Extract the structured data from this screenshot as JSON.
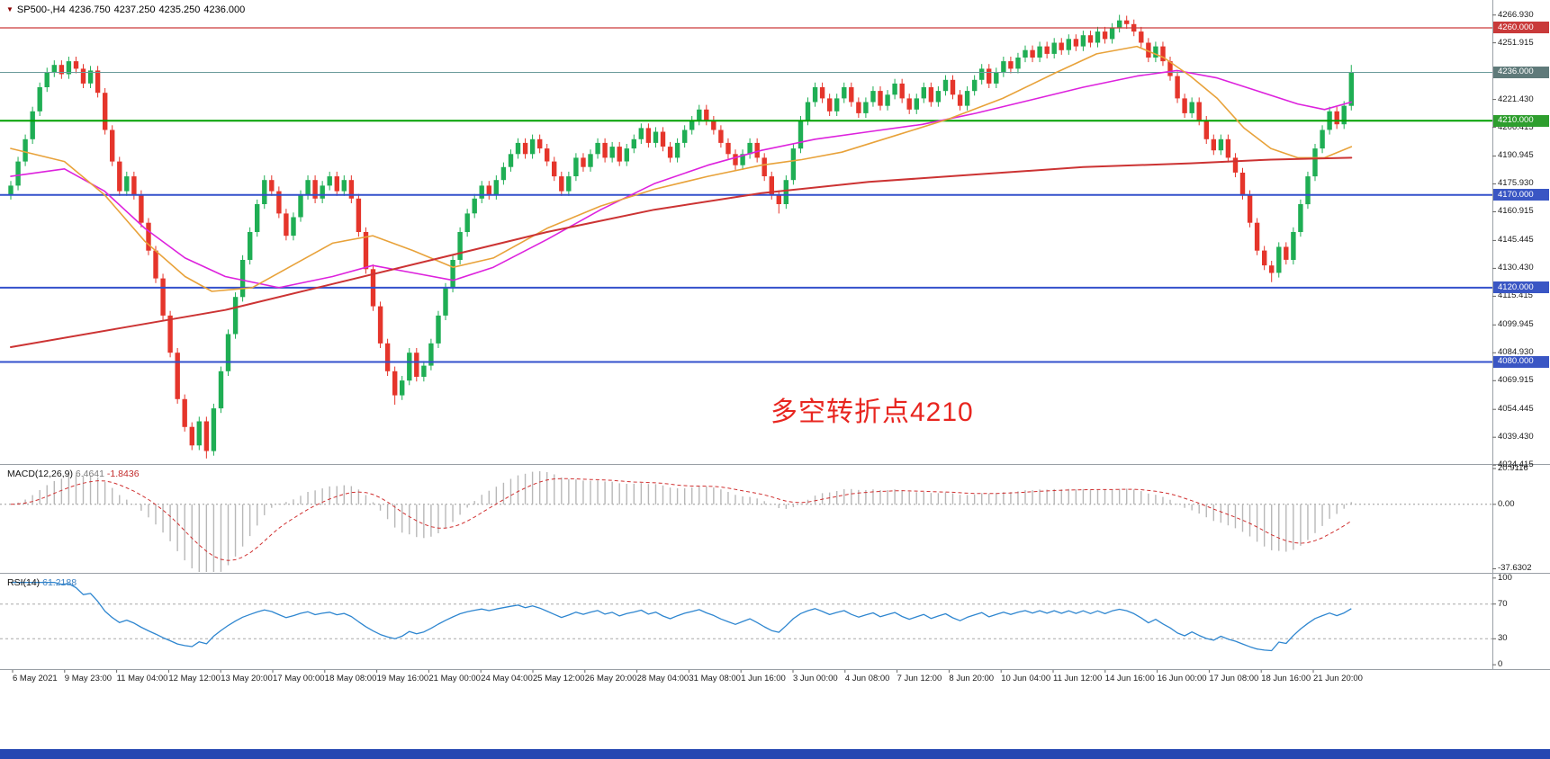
{
  "window": {
    "symbol_line": {
      "marker": "▼",
      "symbol": "SP500-,H4",
      "open": "4236.750",
      "high": "4237.250",
      "low": "4235.250",
      "close": "4236.000"
    }
  },
  "annotation": {
    "text": "多空转折点4210",
    "color": "#e8251f"
  },
  "colors": {
    "background": "#ffffff",
    "separator": "#9aa0a6",
    "axis_text": "#1a1a1a",
    "bottom_bar": "#2547b2",
    "candle_up": "#1fae54",
    "candle_down": "#e5352b"
  },
  "chart_data": {
    "type": "candlestick",
    "symbol": "SP500-",
    "timeframe": "H4",
    "title": "SP500-,H4 4236.750 4237.250 4235.250 4236.000",
    "grid": false,
    "price_axis": {
      "min": 4025,
      "max": 4275,
      "ticks": [
        "4266.930",
        "4251.915",
        "4221.430",
        "4206.415",
        "4190.945",
        "4175.930",
        "4160.915",
        "4145.445",
        "4130.430",
        "4115.415",
        "4099.945",
        "4084.930",
        "4069.915",
        "4054.445",
        "4039.430",
        "4024.415"
      ]
    },
    "levels": [
      {
        "value": 4260,
        "label": "4260.000",
        "color": "#cc3a3a",
        "badge": "#c93a3a",
        "width": 1.2,
        "current": false
      },
      {
        "value": 4236,
        "label": "4236.000",
        "color": "#6b9b9b",
        "badge": "#5f7a7a",
        "width": 1,
        "current": true
      },
      {
        "value": 4210,
        "label": "4210.000",
        "color": "#00a000",
        "badge": "#2e9e2e",
        "width": 2,
        "current": false
      },
      {
        "value": 4170,
        "label": "4170.000",
        "color": "#3350cc",
        "badge": "#3a56c4",
        "width": 2,
        "current": false
      },
      {
        "value": 4120,
        "label": "4120.000",
        "color": "#3350cc",
        "badge": "#3a56c4",
        "width": 2,
        "current": false
      },
      {
        "value": 4080,
        "label": "4080.000",
        "color": "#3350cc",
        "badge": "#3a56c4",
        "width": 2,
        "current": false
      }
    ],
    "up_color": "#1fae54",
    "down_color": "#e5352b",
    "first_open": 4170,
    "wick": 2.5,
    "wick_overrides": {
      "27": {
        "low": 4028
      },
      "53": {
        "low": 4057
      },
      "106": {
        "low": 4160
      },
      "153": {
        "high": 4267
      },
      "174": {
        "low": 4123
      },
      "185": {
        "high": 4240
      }
    },
    "closes": [
      4175,
      4188,
      4200,
      4215,
      4228,
      4236,
      4240,
      4235,
      4242,
      4238,
      4230,
      4237,
      4225,
      4205,
      4188,
      4172,
      4180,
      4170,
      4155,
      4140,
      4125,
      4105,
      4085,
      4060,
      4045,
      4035,
      4048,
      4032,
      4055,
      4075,
      4095,
      4115,
      4135,
      4150,
      4165,
      4178,
      4172,
      4160,
      4148,
      4158,
      4170,
      4178,
      4168,
      4175,
      4180,
      4172,
      4178,
      4168,
      4150,
      4130,
      4110,
      4090,
      4075,
      4062,
      4070,
      4085,
      4072,
      4078,
      4090,
      4105,
      4120,
      4135,
      4150,
      4160,
      4168,
      4175,
      4170,
      4178,
      4185,
      4192,
      4198,
      4192,
      4200,
      4195,
      4188,
      4180,
      4172,
      4180,
      4190,
      4185,
      4192,
      4198,
      4190,
      4196,
      4188,
      4195,
      4200,
      4206,
      4198,
      4204,
      4196,
      4190,
      4198,
      4205,
      4210,
      4216,
      4210,
      4205,
      4198,
      4192,
      4186,
      4192,
      4198,
      4190,
      4180,
      4170,
      4165,
      4178,
      4195,
      4210,
      4220,
      4228,
      4222,
      4215,
      4222,
      4228,
      4220,
      4214,
      4220,
      4226,
      4218,
      4224,
      4230,
      4222,
      4216,
      4222,
      4228,
      4220,
      4226,
      4232,
      4224,
      4218,
      4226,
      4232,
      4238,
      4230,
      4236,
      4242,
      4238,
      4244,
      4248,
      4244,
      4250,
      4246,
      4252,
      4248,
      4254,
      4250,
      4256,
      4252,
      4258,
      4254,
      4260,
      4264,
      4262,
      4258,
      4252,
      4244,
      4250,
      4242,
      4234,
      4222,
      4214,
      4220,
      4210,
      4200,
      4194,
      4200,
      4190,
      4182,
      4170,
      4155,
      4140,
      4132,
      4128,
      4142,
      4135,
      4150,
      4165,
      4180,
      4195,
      4205,
      4215,
      4208,
      4218,
      4236
    ],
    "ma_lines": [
      {
        "name": "ma-magenta",
        "color": "#dd22dd",
        "width": 1.6,
        "points": [
          [
            0,
            4180
          ],
          [
            0.04,
            4184
          ],
          [
            0.07,
            4172
          ],
          [
            0.1,
            4152
          ],
          [
            0.13,
            4136
          ],
          [
            0.16,
            4126
          ],
          [
            0.2,
            4120
          ],
          [
            0.24,
            4126
          ],
          [
            0.27,
            4132
          ],
          [
            0.3,
            4128
          ],
          [
            0.33,
            4124
          ],
          [
            0.36,
            4131
          ],
          [
            0.4,
            4146
          ],
          [
            0.44,
            4162
          ],
          [
            0.48,
            4176
          ],
          [
            0.52,
            4186
          ],
          [
            0.56,
            4194
          ],
          [
            0.6,
            4200
          ],
          [
            0.64,
            4204
          ],
          [
            0.68,
            4208
          ],
          [
            0.72,
            4214
          ],
          [
            0.76,
            4221
          ],
          [
            0.8,
            4228
          ],
          [
            0.84,
            4234
          ],
          [
            0.87,
            4237
          ],
          [
            0.9,
            4233
          ],
          [
            0.93,
            4226
          ],
          [
            0.96,
            4219
          ],
          [
            0.98,
            4216
          ],
          [
            1,
            4220
          ]
        ]
      },
      {
        "name": "ma-orange",
        "color": "#e8a23a",
        "width": 1.6,
        "points": [
          [
            0,
            4195
          ],
          [
            0.04,
            4188
          ],
          [
            0.07,
            4170
          ],
          [
            0.1,
            4145
          ],
          [
            0.13,
            4126
          ],
          [
            0.15,
            4118
          ],
          [
            0.18,
            4120
          ],
          [
            0.21,
            4132
          ],
          [
            0.24,
            4144
          ],
          [
            0.27,
            4148
          ],
          [
            0.3,
            4140
          ],
          [
            0.33,
            4131
          ],
          [
            0.36,
            4136
          ],
          [
            0.4,
            4152
          ],
          [
            0.44,
            4164
          ],
          [
            0.48,
            4173
          ],
          [
            0.52,
            4180
          ],
          [
            0.56,
            4186
          ],
          [
            0.59,
            4189
          ],
          [
            0.62,
            4193
          ],
          [
            0.66,
            4202
          ],
          [
            0.7,
            4211
          ],
          [
            0.74,
            4222
          ],
          [
            0.78,
            4236
          ],
          [
            0.81,
            4246
          ],
          [
            0.84,
            4250
          ],
          [
            0.86,
            4244
          ],
          [
            0.88,
            4234
          ],
          [
            0.9,
            4222
          ],
          [
            0.92,
            4206
          ],
          [
            0.94,
            4195
          ],
          [
            0.96,
            4190
          ],
          [
            0.98,
            4190
          ],
          [
            1,
            4196
          ]
        ]
      },
      {
        "name": "ma-red",
        "color": "#cc3333",
        "width": 2,
        "points": [
          [
            0,
            4088
          ],
          [
            0.08,
            4098
          ],
          [
            0.16,
            4108
          ],
          [
            0.24,
            4122
          ],
          [
            0.32,
            4136
          ],
          [
            0.4,
            4150
          ],
          [
            0.48,
            4162
          ],
          [
            0.56,
            4171
          ],
          [
            0.64,
            4177
          ],
          [
            0.72,
            4181
          ],
          [
            0.8,
            4185
          ],
          [
            0.88,
            4187
          ],
          [
            0.94,
            4189
          ],
          [
            1,
            4190
          ]
        ]
      }
    ],
    "time_labels": [
      "6 May 2021",
      "9 May 23:00",
      "11 May 04:00",
      "12 May 12:00",
      "13 May 20:00",
      "17 May 00:00",
      "18 May 08:00",
      "19 May 16:00",
      "21 May 00:00",
      "24 May 04:00",
      "25 May 12:00",
      "26 May 20:00",
      "28 May 04:00",
      "31 May 08:00",
      "1 Jun 16:00",
      "3 Jun 00:00",
      "4 Jun 08:00",
      "7 Jun 12:00",
      "8 Jun 20:00",
      "10 Jun 04:00",
      "11 Jun 12:00",
      "14 Jun 16:00",
      "16 Jun 00:00",
      "17 Jun 08:00",
      "18 Jun 16:00",
      "21 Jun 20:00"
    ],
    "indicators": {
      "macd": {
        "label": "MACD(12,26,9)",
        "value_main": "6.4641",
        "value_signal": "-1.8436",
        "fast": 12,
        "slow": 26,
        "signal": 9,
        "axis": [
          "20.9116",
          "0.00",
          "-37.6302"
        ],
        "range": [
          23,
          -40
        ],
        "hist_color": "#b8b8b8",
        "signal_color": "#d03030"
      },
      "rsi": {
        "label": "RSI(14)",
        "value": "61.2188",
        "period": 14,
        "axis": [
          "100",
          "70",
          "30",
          "0"
        ],
        "levels": [
          70,
          30
        ],
        "range": [
          105,
          -5
        ],
        "color": "#2e86d0"
      }
    }
  }
}
